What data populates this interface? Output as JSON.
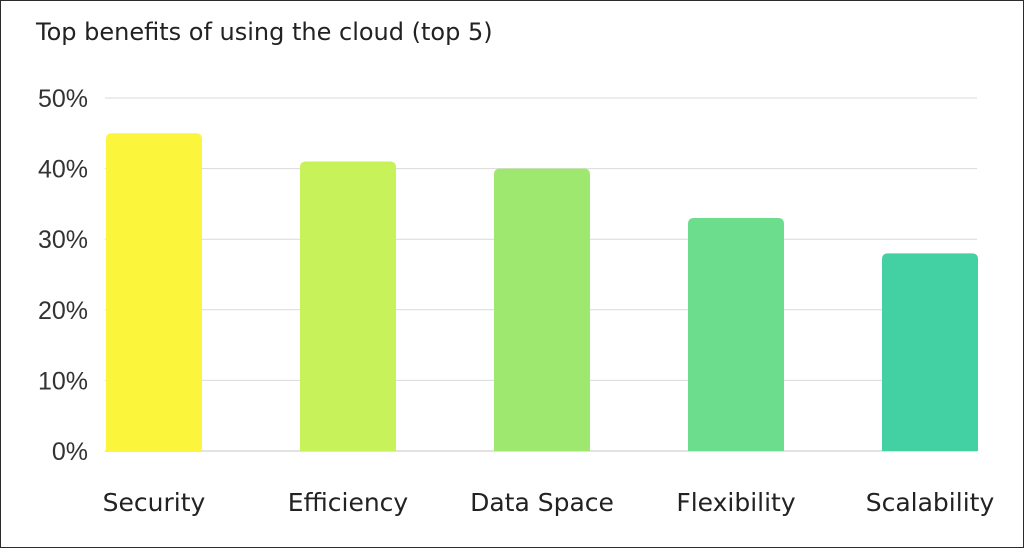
{
  "chart_data": {
    "type": "bar",
    "title": "Top benefits of using the cloud (top 5)",
    "categories": [
      "Security",
      "Efficiency",
      "Data Space",
      "Flexibility",
      "Scalability"
    ],
    "values": [
      45,
      41,
      40,
      33,
      28
    ],
    "colors": [
      "#fbf53c",
      "#c8f25a",
      "#9fe870",
      "#6cdc8d",
      "#43d1a3"
    ],
    "yticks": [
      "0%",
      "10%",
      "20%",
      "30%",
      "40%",
      "50%"
    ],
    "ylim": [
      0,
      50
    ],
    "xlabel": "",
    "ylabel": "",
    "grid": true,
    "gridColor": "#d9d9d9"
  }
}
